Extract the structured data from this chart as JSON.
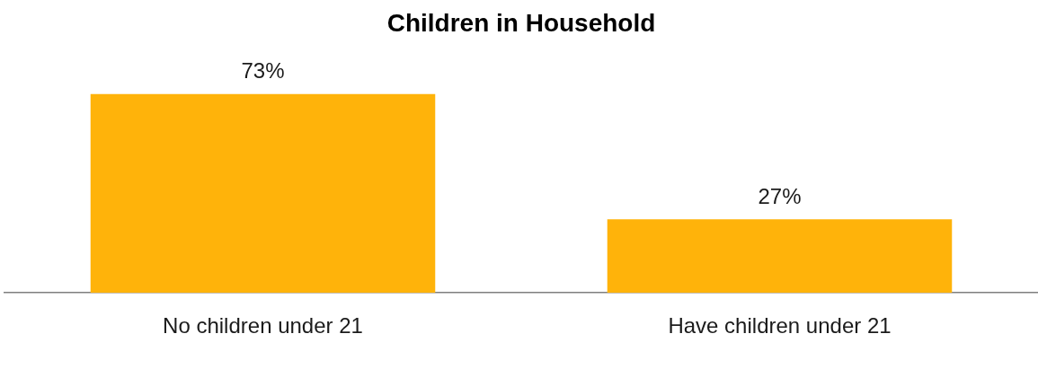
{
  "chart_data": {
    "type": "bar",
    "title": "Children in Household",
    "categories": [
      "No children under 21",
      "Have children under 21"
    ],
    "values": [
      73,
      27
    ],
    "value_labels": [
      "73%",
      "27%"
    ],
    "color": "#ffb30a",
    "grid": false,
    "legend": false
  }
}
